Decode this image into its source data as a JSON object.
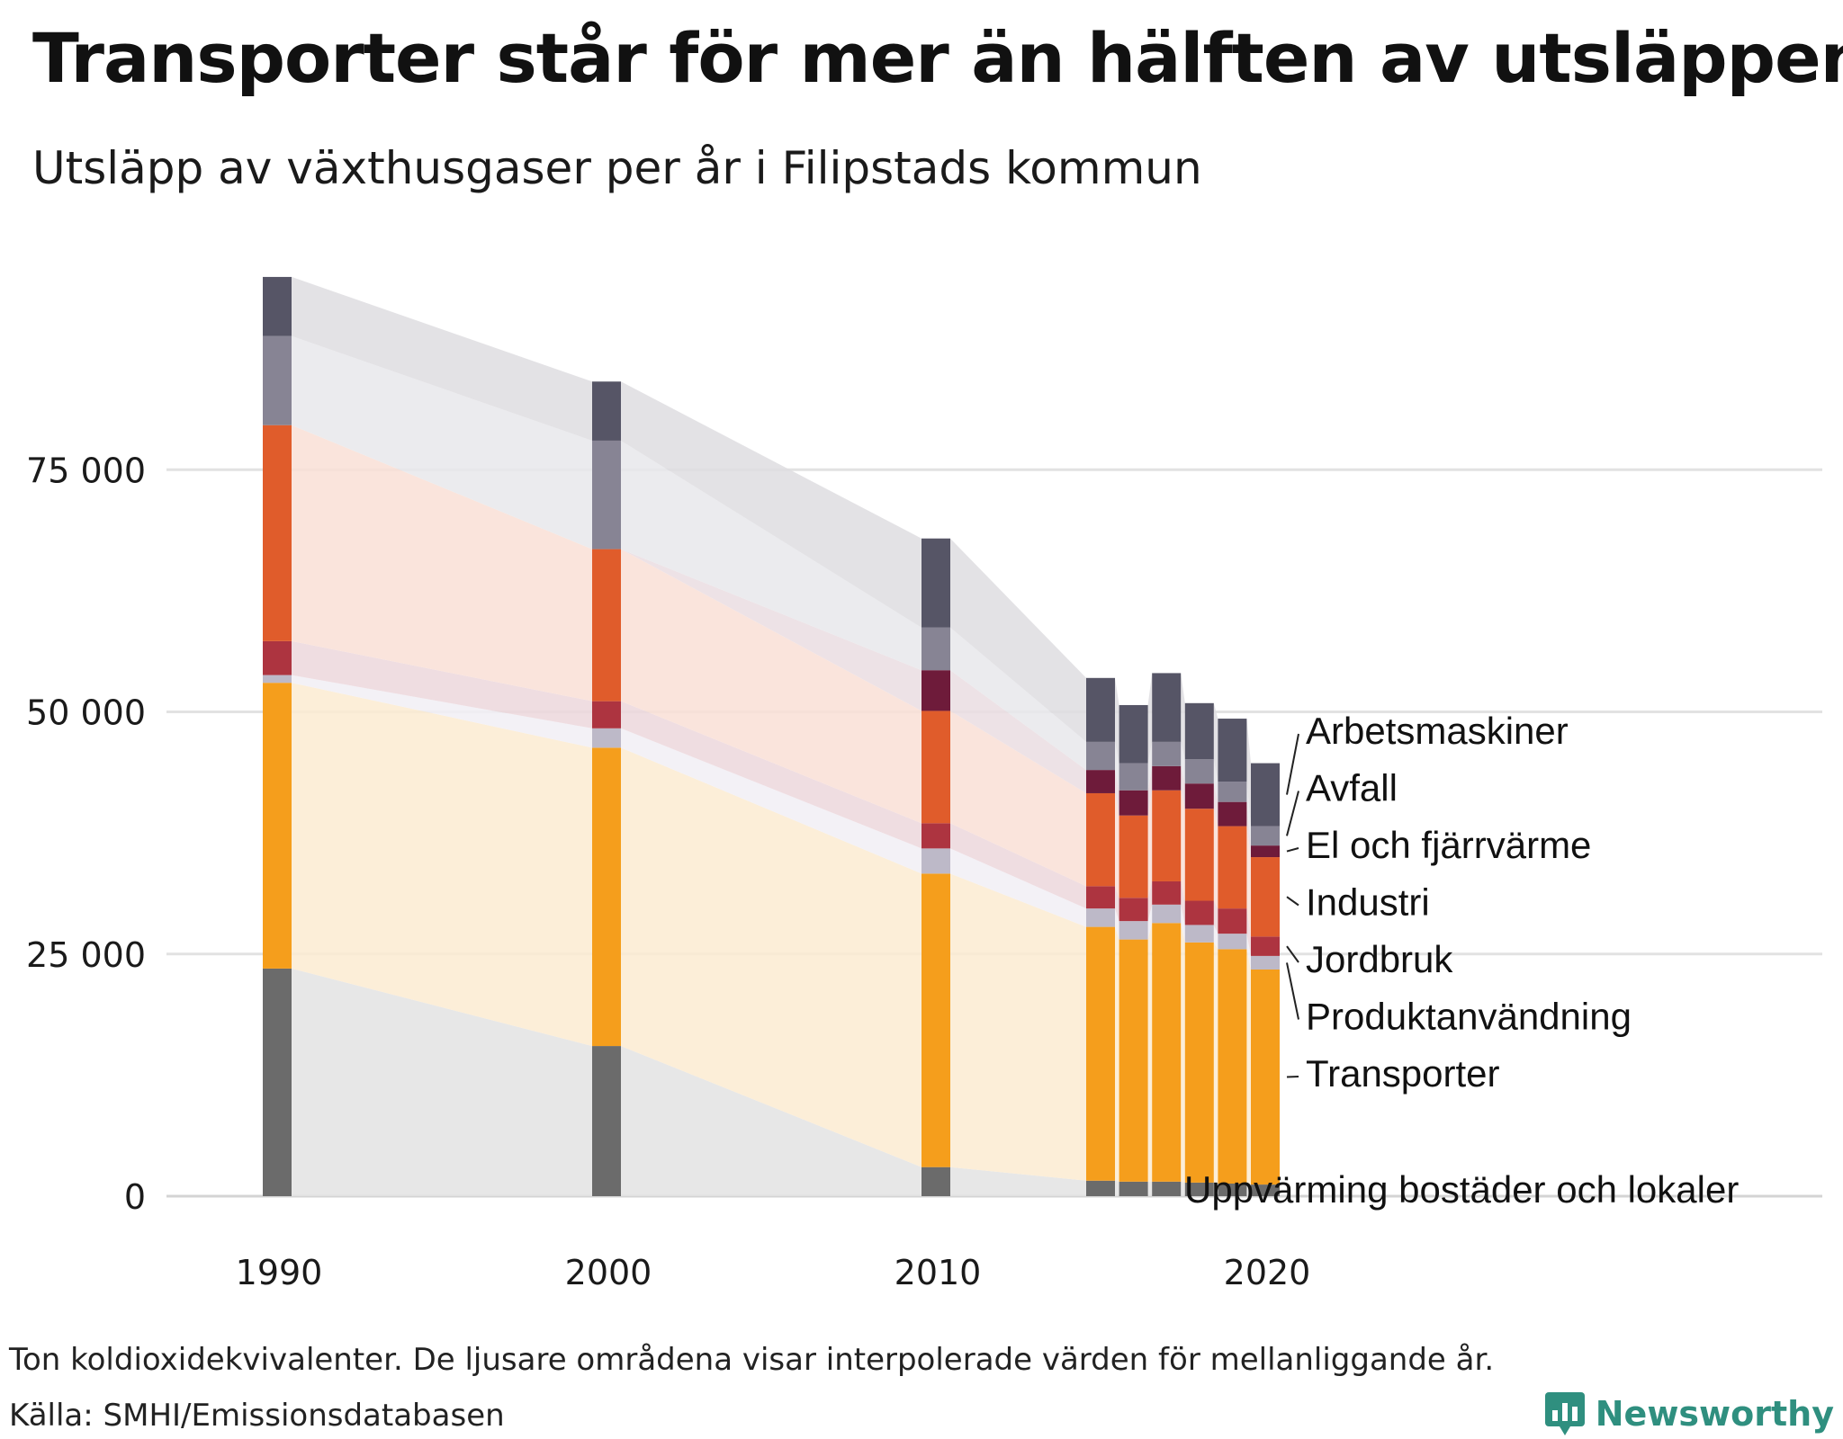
{
  "header": {
    "title": "Transporter står för mer än hälften av utsläppen",
    "subtitle": "Utsläpp av växthusgaser per år i Filipstads kommun"
  },
  "footer": {
    "note": "Ton koldioxidekvivalenter. De ljusare områdena visar interpolerade värden för mellanliggande år.",
    "source": "Källa: SMHI/Emissionsdatabasen",
    "brand": "Newsworthy",
    "brand_icon": "bar-chart-speech-bubble-icon"
  },
  "chart_data": {
    "type": "bar",
    "stacked": true,
    "years": [
      1990,
      2000,
      2010,
      2015,
      2016,
      2017,
      2018,
      2019,
      2020
    ],
    "x_ticks": [
      1990,
      2000,
      2010,
      2020
    ],
    "y_ticks": [
      0,
      25000,
      50000,
      75000
    ],
    "y_tick_labels": [
      "0",
      "25 000",
      "50 000",
      "75 000"
    ],
    "ylim": [
      0,
      95000
    ],
    "grid": "horizontal",
    "legend": "direct labels right",
    "series": [
      {
        "name": "Uppvärming bostäder och lokaler",
        "color": "#6b6b6b",
        "fill": "#e3e3e3",
        "values": [
          23500,
          15500,
          3000,
          1600,
          1500,
          1500,
          1400,
          1300,
          1200
        ]
      },
      {
        "name": "Transporter",
        "color": "#f59e1c",
        "fill": "#fcebd1",
        "values": [
          29500,
          30800,
          30300,
          26200,
          25000,
          26700,
          24800,
          24200,
          22200
        ]
      },
      {
        "name": "Produktanvändning",
        "color": "#bdb9c8",
        "fill": "#f1eff4",
        "values": [
          800,
          2000,
          2600,
          1900,
          1900,
          1900,
          1800,
          1600,
          1400
        ]
      },
      {
        "name": "Jordbruk",
        "color": "#ad3440",
        "fill": "#ecd7dc",
        "values": [
          3500,
          2800,
          2600,
          2300,
          2400,
          2400,
          2500,
          2600,
          2000
        ]
      },
      {
        "name": "Industri",
        "color": "#e05c2b",
        "fill": "#f9dfd6",
        "values": [
          22300,
          15700,
          11600,
          9600,
          8500,
          9400,
          9500,
          8500,
          8200
        ]
      },
      {
        "name": "El och fjärrvärme",
        "color": "#6e1b3a",
        "fill": "#eadde2",
        "values": [
          0,
          0,
          4200,
          2400,
          2600,
          2500,
          2600,
          2500,
          1200
        ]
      },
      {
        "name": "Avfall",
        "color": "#878494",
        "fill": "#e8e7eb",
        "values": [
          9200,
          11200,
          4400,
          2900,
          2800,
          2500,
          2500,
          2100,
          2000
        ]
      },
      {
        "name": "Arbetsmaskiner",
        "color": "#565566",
        "fill": "#dedde0",
        "values": [
          6100,
          6100,
          9200,
          6600,
          6000,
          7100,
          5800,
          6500,
          6500
        ]
      }
    ]
  }
}
